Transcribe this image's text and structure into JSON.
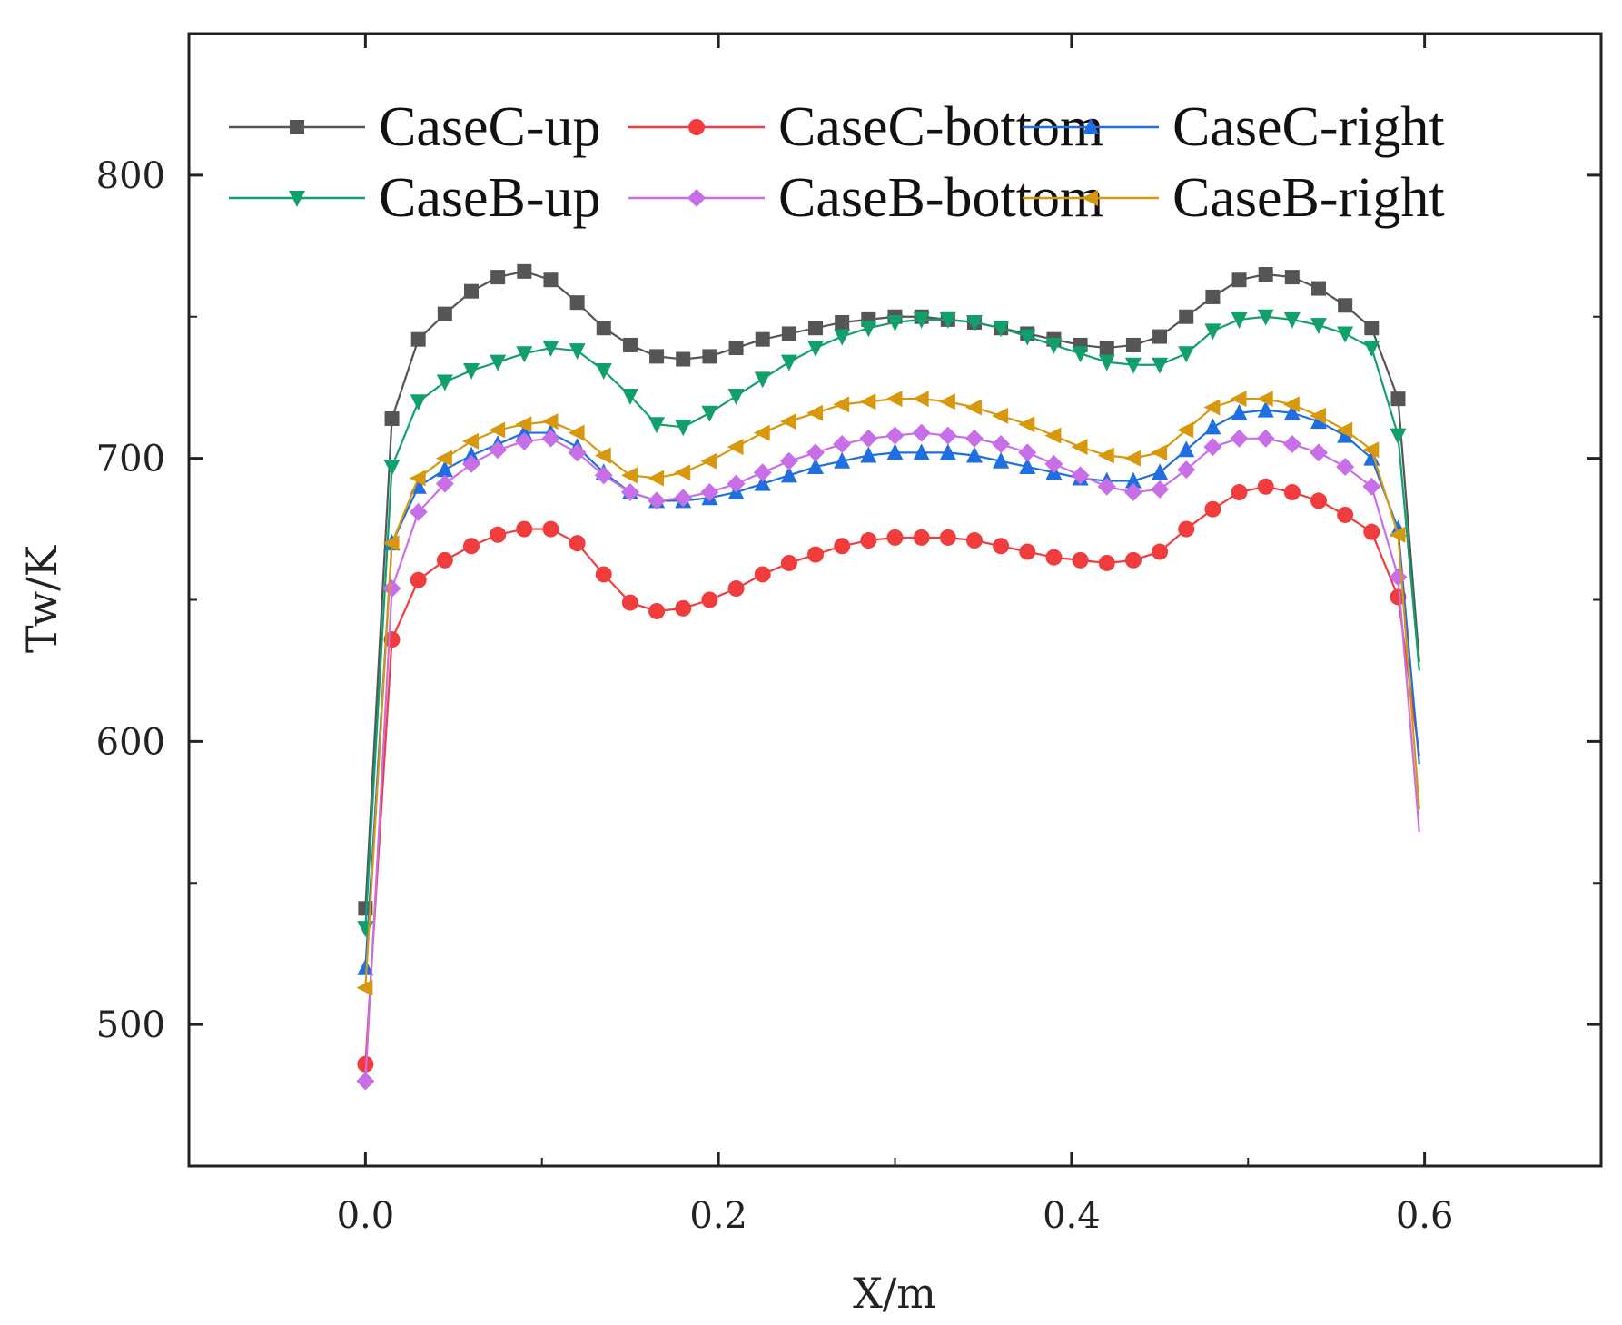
{
  "chart_data": {
    "type": "line",
    "title": "",
    "xlabel": "X/m",
    "ylabel": "Tw/K",
    "xlim": [
      -0.1,
      0.7
    ],
    "ylim": [
      450,
      850
    ],
    "xticks": [
      "0.0",
      "0.2",
      "0.4",
      "0.6"
    ],
    "xtick_values": [
      0.0,
      0.2,
      0.4,
      0.6
    ],
    "yticks": [
      "500",
      "600",
      "700",
      "800"
    ],
    "ytick_values": [
      500,
      600,
      700,
      800
    ],
    "legend_position": "top",
    "x": [
      0.0,
      0.015,
      0.03,
      0.045,
      0.06,
      0.075,
      0.09,
      0.105,
      0.12,
      0.135,
      0.15,
      0.165,
      0.18,
      0.195,
      0.21,
      0.225,
      0.24,
      0.255,
      0.27,
      0.285,
      0.3,
      0.315,
      0.33,
      0.345,
      0.36,
      0.375,
      0.39,
      0.405,
      0.42,
      0.435,
      0.45,
      0.465,
      0.48,
      0.495,
      0.51,
      0.525,
      0.54,
      0.555,
      0.57,
      0.585
    ],
    "series": [
      {
        "name": "CaseC-up",
        "color": "#555555",
        "marker": "square",
        "values": [
          541,
          714,
          742,
          751,
          759,
          764,
          766,
          763,
          755,
          746,
          740,
          736,
          735,
          736,
          739,
          742,
          744,
          746,
          748,
          749,
          750,
          750,
          749,
          748,
          746,
          744,
          742,
          740,
          739,
          740,
          743,
          750,
          757,
          763,
          765,
          764,
          760,
          754,
          746,
          721
        ],
        "end_value": 628
      },
      {
        "name": "CaseC-bottom",
        "color": "#f03c3c",
        "marker": "circle",
        "values": [
          486,
          636,
          657,
          664,
          669,
          673,
          675,
          675,
          670,
          659,
          649,
          646,
          647,
          650,
          654,
          659,
          663,
          666,
          669,
          671,
          672,
          672,
          672,
          671,
          669,
          667,
          665,
          664,
          663,
          664,
          667,
          675,
          682,
          688,
          690,
          688,
          685,
          680,
          674,
          651
        ],
        "end_value": 595
      },
      {
        "name": "CaseC-right",
        "color": "#1f6fe0",
        "marker": "triangle-up",
        "values": [
          520,
          670,
          690,
          696,
          701,
          705,
          709,
          709,
          704,
          695,
          688,
          685,
          685,
          686,
          688,
          691,
          694,
          697,
          699,
          701,
          702,
          702,
          702,
          701,
          699,
          697,
          695,
          693,
          692,
          692,
          695,
          703,
          711,
          716,
          717,
          716,
          713,
          708,
          700,
          675
        ],
        "end_value": 592
      },
      {
        "name": "CaseB-up",
        "color": "#12a06a",
        "marker": "triangle-down",
        "values": [
          534,
          697,
          720,
          727,
          731,
          734,
          737,
          739,
          738,
          731,
          722,
          712,
          711,
          716,
          722,
          728,
          734,
          739,
          743,
          746,
          748,
          749,
          749,
          748,
          746,
          743,
          740,
          737,
          734,
          733,
          733,
          737,
          745,
          749,
          750,
          749,
          747,
          744,
          739,
          708
        ],
        "end_value": 625
      },
      {
        "name": "CaseB-bottom",
        "color": "#c86fe8",
        "marker": "diamond",
        "values": [
          480,
          654,
          681,
          691,
          698,
          703,
          706,
          707,
          702,
          694,
          688,
          685,
          686,
          688,
          691,
          695,
          699,
          702,
          705,
          707,
          708,
          709,
          708,
          707,
          705,
          702,
          698,
          694,
          690,
          688,
          689,
          696,
          704,
          707,
          707,
          705,
          702,
          697,
          690,
          658
        ],
        "end_value": 568
      },
      {
        "name": "CaseB-right",
        "color": "#d8980d",
        "marker": "triangle-left",
        "values": [
          513,
          670,
          693,
          700,
          706,
          710,
          712,
          713,
          709,
          701,
          694,
          693,
          695,
          699,
          704,
          709,
          713,
          716,
          719,
          720,
          721,
          721,
          720,
          718,
          715,
          712,
          708,
          704,
          701,
          700,
          702,
          710,
          718,
          721,
          721,
          719,
          715,
          710,
          703,
          673
        ],
        "end_value": 576
      }
    ]
  }
}
